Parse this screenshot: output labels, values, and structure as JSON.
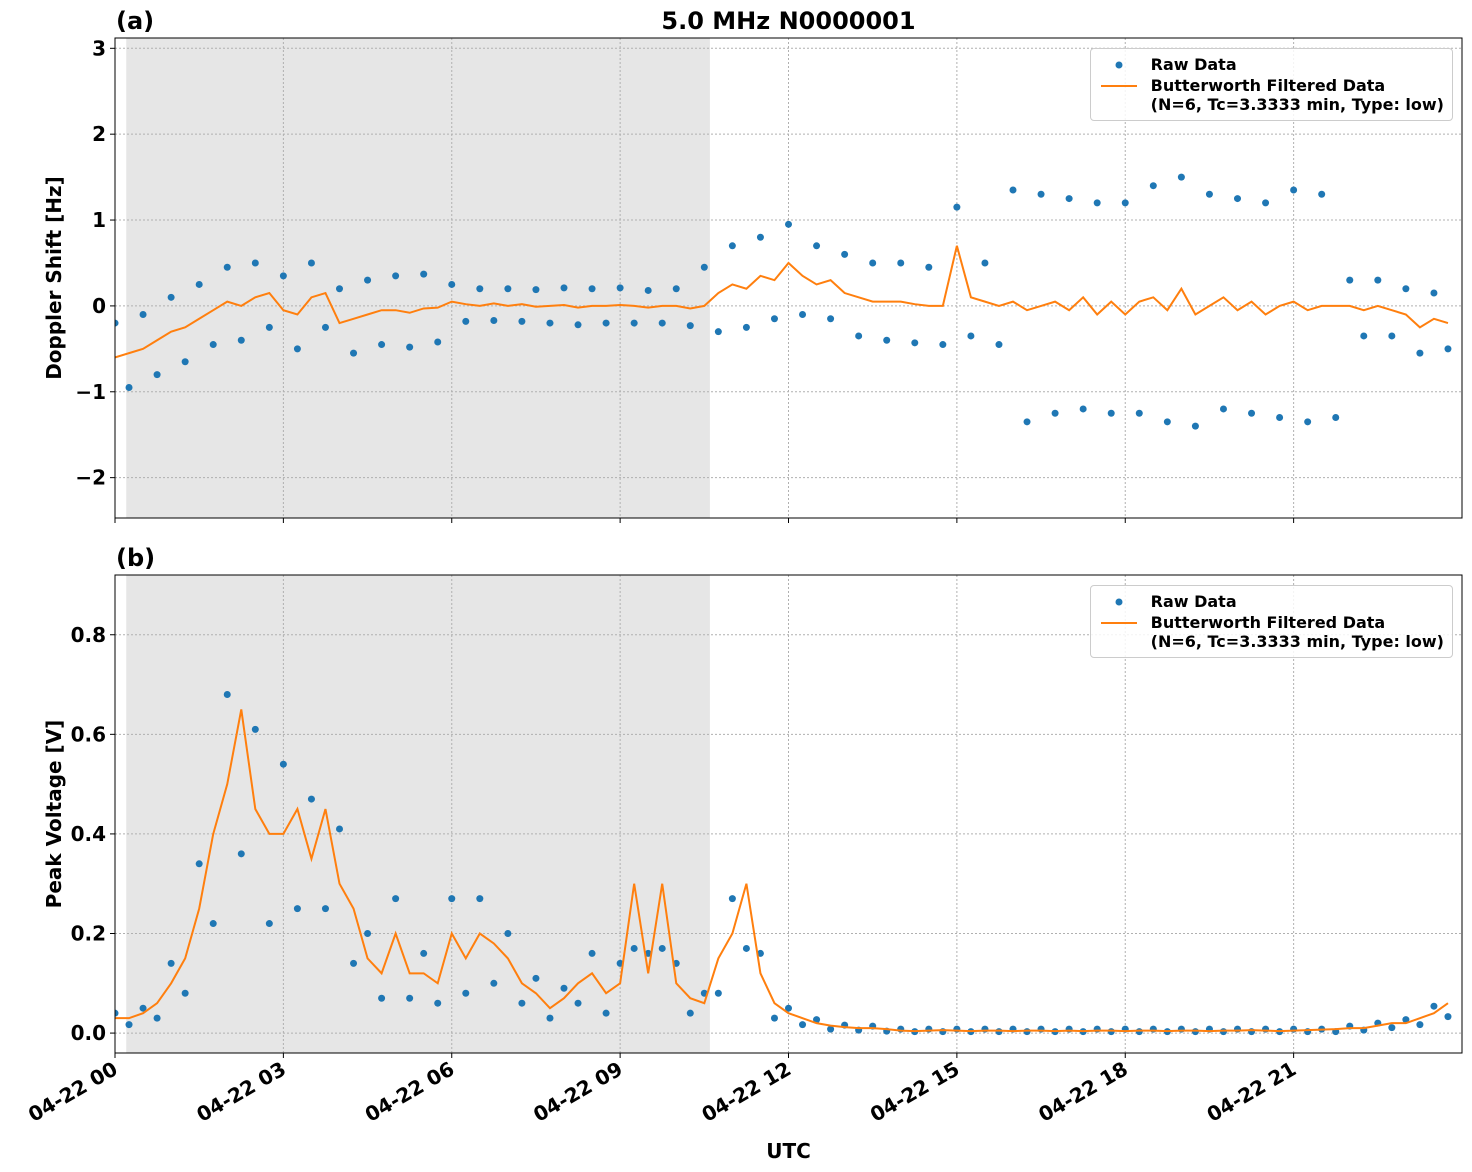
{
  "chart_data": [
    {
      "type": "scatter-line",
      "title": "5.0 MHz N0000001",
      "panel_label": "(a)",
      "ylabel": "Doppler Shift [Hz]",
      "xlim": [
        0,
        24
      ],
      "xticks": [
        0,
        3,
        6,
        9,
        12,
        15,
        18,
        21
      ],
      "ylim": [
        -2.47,
        3.12
      ],
      "yticks": [
        {
          "value": -2,
          "label": "−2"
        },
        {
          "value": -1,
          "label": "−1"
        },
        0,
        1,
        2,
        3
      ],
      "grid": true,
      "legend": "upper right",
      "shaded_span": [
        0.2,
        10.6
      ],
      "shade_color": "#e6e6e6",
      "x": [
        0,
        0.25,
        0.5,
        0.75,
        1,
        1.25,
        1.5,
        1.75,
        2,
        2.25,
        2.5,
        2.75,
        3,
        3.25,
        3.5,
        3.75,
        4,
        4.25,
        4.5,
        4.75,
        5,
        5.25,
        5.5,
        5.75,
        6,
        6.25,
        6.5,
        6.75,
        7,
        7.25,
        7.5,
        7.75,
        8,
        8.25,
        8.5,
        8.75,
        9,
        9.25,
        9.5,
        9.75,
        10,
        10.25,
        10.5,
        10.75,
        11,
        11.25,
        11.5,
        11.75,
        12,
        12.25,
        12.5,
        12.75,
        13,
        13.25,
        13.5,
        13.75,
        14,
        14.25,
        14.5,
        14.75,
        15,
        15.25,
        15.5,
        15.75,
        16,
        16.25,
        16.5,
        16.75,
        17,
        17.25,
        17.5,
        17.75,
        18,
        18.25,
        18.5,
        18.75,
        19,
        19.25,
        19.5,
        19.75,
        20,
        20.25,
        20.5,
        20.75,
        21,
        21.25,
        21.5,
        21.75,
        22,
        22.25,
        22.5,
        22.75,
        23,
        23.25,
        23.5,
        23.75
      ],
      "series": [
        {
          "name": "Raw Data",
          "style": "points",
          "color": "#1f77b4",
          "values": [
            -0.2,
            -0.95,
            -0.1,
            -0.8,
            0.1,
            -0.65,
            0.25,
            -0.45,
            0.45,
            -0.4,
            0.5,
            -0.25,
            0.35,
            -0.5,
            0.5,
            -0.25,
            0.2,
            -0.55,
            0.3,
            -0.45,
            0.35,
            -0.48,
            0.37,
            -0.42,
            0.25,
            -0.18,
            0.2,
            -0.17,
            0.2,
            -0.18,
            0.19,
            -0.2,
            0.21,
            -0.22,
            0.2,
            -0.2,
            0.21,
            -0.2,
            0.18,
            -0.2,
            0.2,
            -0.23,
            0.45,
            -0.3,
            0.7,
            -0.25,
            0.8,
            -0.15,
            0.95,
            -0.1,
            0.7,
            -0.15,
            0.6,
            -0.35,
            0.5,
            -0.4,
            0.5,
            -0.43,
            0.45,
            -0.45,
            1.15,
            -0.35,
            0.5,
            -0.45,
            1.35,
            -1.35,
            1.3,
            -1.25,
            1.25,
            -1.2,
            1.2,
            -1.25,
            1.2,
            -1.25,
            1.4,
            -1.35,
            1.5,
            -1.4,
            1.3,
            -1.2,
            1.25,
            -1.25,
            1.2,
            -1.3,
            1.35,
            -1.35,
            1.3,
            -1.3,
            0.3,
            -0.35,
            0.3,
            -0.35,
            0.2,
            -0.55,
            0.15,
            -0.5
          ]
        },
        {
          "name": "Butterworth Filtered Data\n(N=6, Tc=3.3333 min, Type: low)",
          "style": "line",
          "color": "#ff7f0e",
          "values": [
            -0.6,
            -0.55,
            -0.5,
            -0.4,
            -0.3,
            -0.25,
            -0.15,
            -0.05,
            0.05,
            0,
            0.1,
            0.15,
            -0.05,
            -0.1,
            0.1,
            0.15,
            -0.2,
            -0.15,
            -0.1,
            -0.05,
            -0.05,
            -0.08,
            -0.03,
            -0.02,
            0.05,
            0.02,
            0,
            0.03,
            0,
            0.02,
            -0.01,
            0,
            0.01,
            -0.02,
            0,
            0,
            0.01,
            0,
            -0.02,
            0,
            0,
            -0.03,
            0,
            0.15,
            0.25,
            0.2,
            0.35,
            0.3,
            0.5,
            0.35,
            0.25,
            0.3,
            0.15,
            0.1,
            0.05,
            0.05,
            0.05,
            0.02,
            0,
            0,
            0.7,
            0.1,
            0.05,
            0,
            0.05,
            -0.05,
            0,
            0.05,
            -0.05,
            0.1,
            -0.1,
            0.05,
            -0.1,
            0.05,
            0.1,
            -0.05,
            0.2,
            -0.1,
            0,
            0.1,
            -0.05,
            0.05,
            -0.1,
            0,
            0.05,
            -0.05,
            0,
            0,
            0,
            -0.05,
            0,
            -0.05,
            -0.1,
            -0.25,
            -0.15,
            -0.2
          ]
        }
      ]
    },
    {
      "type": "scatter-line",
      "panel_label": "(b)",
      "ylabel": "Peak Voltage [V]",
      "xlabel": "UTC",
      "xlim": [
        0,
        24
      ],
      "xticks": [
        {
          "value": 0,
          "label": "04-22 00"
        },
        {
          "value": 3,
          "label": "04-22 03"
        },
        {
          "value": 6,
          "label": "04-22 06"
        },
        {
          "value": 9,
          "label": "04-22 09"
        },
        {
          "value": 12,
          "label": "04-22 12"
        },
        {
          "value": 15,
          "label": "04-22 15"
        },
        {
          "value": 18,
          "label": "04-22 18"
        },
        {
          "value": 21,
          "label": "04-22 21"
        }
      ],
      "ylim": [
        -0.04,
        0.92
      ],
      "yticks": [
        {
          "value": 0,
          "label": "0.0"
        },
        0.2,
        0.4,
        0.6,
        0.8
      ],
      "grid": true,
      "legend": "upper right",
      "shaded_span": [
        0.2,
        10.6
      ],
      "shade_color": "#e6e6e6",
      "x": [
        0,
        0.25,
        0.5,
        0.75,
        1,
        1.25,
        1.5,
        1.75,
        2,
        2.25,
        2.5,
        2.75,
        3,
        3.25,
        3.5,
        3.75,
        4,
        4.25,
        4.5,
        4.75,
        5,
        5.25,
        5.5,
        5.75,
        6,
        6.25,
        6.5,
        6.75,
        7,
        7.25,
        7.5,
        7.75,
        8,
        8.25,
        8.5,
        8.75,
        9,
        9.25,
        9.5,
        9.75,
        10,
        10.25,
        10.5,
        10.75,
        11,
        11.25,
        11.5,
        11.75,
        12,
        12.25,
        12.5,
        12.75,
        13,
        13.25,
        13.5,
        13.75,
        14,
        14.25,
        14.5,
        14.75,
        15,
        15.25,
        15.5,
        15.75,
        16,
        16.25,
        16.5,
        16.75,
        17,
        17.25,
        17.5,
        17.75,
        18,
        18.25,
        18.5,
        18.75,
        19,
        19.25,
        19.5,
        19.75,
        20,
        20.25,
        20.5,
        20.75,
        21,
        21.25,
        21.5,
        21.75,
        22,
        22.25,
        22.5,
        22.75,
        23,
        23.25,
        23.5,
        23.75
      ],
      "series": [
        {
          "name": "Raw Data",
          "style": "points",
          "color": "#1f77b4",
          "values": [
            0.04,
            0.017,
            0.05,
            0.03,
            0.14,
            0.08,
            0.34,
            0.22,
            0.68,
            0.36,
            0.61,
            0.22,
            0.54,
            0.25,
            0.47,
            0.25,
            0.41,
            0.14,
            0.2,
            0.07,
            0.27,
            0.07,
            0.16,
            0.06,
            0.27,
            0.08,
            0.27,
            0.1,
            0.2,
            0.06,
            0.11,
            0.03,
            0.09,
            0.06,
            0.16,
            0.04,
            0.14,
            0.17,
            0.16,
            0.17,
            0.14,
            0.04,
            0.08,
            0.08,
            0.27,
            0.17,
            0.16,
            0.03,
            0.05,
            0.017,
            0.027,
            0.008,
            0.016,
            0.006,
            0.014,
            0.004,
            0.008,
            0.003,
            0.008,
            0.003,
            0.008,
            0.003,
            0.008,
            0.003,
            0.008,
            0.003,
            0.008,
            0.003,
            0.008,
            0.003,
            0.008,
            0.003,
            0.008,
            0.003,
            0.008,
            0.003,
            0.008,
            0.003,
            0.008,
            0.003,
            0.008,
            0.003,
            0.008,
            0.003,
            0.008,
            0.003,
            0.008,
            0.003,
            0.014,
            0.006,
            0.02,
            0.011,
            0.027,
            0.017,
            0.054,
            0.033
          ]
        },
        {
          "name": "Butterworth Filtered Data\n(N=6, Tc=3.3333 min, Type: low)",
          "style": "line",
          "color": "#ff7f0e",
          "values": [
            0.03,
            0.03,
            0.04,
            0.06,
            0.1,
            0.15,
            0.25,
            0.4,
            0.5,
            0.65,
            0.45,
            0.4,
            0.4,
            0.45,
            0.35,
            0.45,
            0.3,
            0.25,
            0.15,
            0.12,
            0.2,
            0.12,
            0.12,
            0.1,
            0.2,
            0.15,
            0.2,
            0.18,
            0.15,
            0.1,
            0.08,
            0.05,
            0.07,
            0.1,
            0.12,
            0.08,
            0.1,
            0.3,
            0.12,
            0.3,
            0.1,
            0.07,
            0.06,
            0.15,
            0.2,
            0.3,
            0.12,
            0.06,
            0.04,
            0.03,
            0.02,
            0.015,
            0.012,
            0.01,
            0.01,
            0.008,
            0.005,
            0.004,
            0.005,
            0.006,
            0.005,
            0.004,
            0.005,
            0.005,
            0.004,
            0.005,
            0.005,
            0.004,
            0.005,
            0.004,
            0.005,
            0.005,
            0.004,
            0.005,
            0.005,
            0.004,
            0.005,
            0.005,
            0.004,
            0.005,
            0.005,
            0.006,
            0.005,
            0.004,
            0.005,
            0.006,
            0.007,
            0.008,
            0.01,
            0.01,
            0.015,
            0.02,
            0.02,
            0.03,
            0.04,
            0.06
          ]
        }
      ]
    }
  ]
}
